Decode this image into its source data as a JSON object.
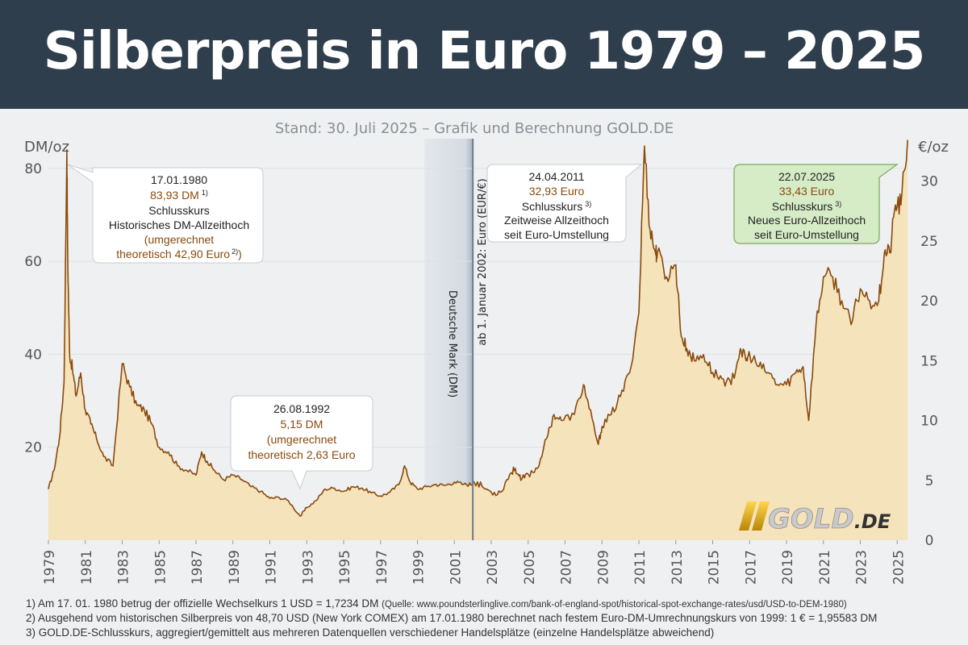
{
  "header": {
    "title": "Silberpreis in Euro 1979 – 2025"
  },
  "chart_data": {
    "type": "area",
    "subtitle": "Stand: 30. Juli 2025 – Grafik und Berechnung GOLD.DE",
    "left_axis": {
      "unit": "DM/oz",
      "ticks": [
        20,
        40,
        60,
        80
      ],
      "range": [
        0,
        85
      ]
    },
    "right_axis": {
      "unit": "€/oz",
      "ticks": [
        0,
        5,
        10,
        15,
        20,
        25,
        30
      ],
      "range": [
        0,
        33
      ]
    },
    "x_axis": {
      "range": [
        1979,
        2025.6
      ],
      "ticks": [
        "1979",
        "1981",
        "1983",
        "1985",
        "1987",
        "1989",
        "1991",
        "1993",
        "1995",
        "1997",
        "1999",
        "2001",
        "2003",
        "2005",
        "2007",
        "2009",
        "2011",
        "2013",
        "2015",
        "2017",
        "2019",
        "2021",
        "2023",
        "2025"
      ]
    },
    "currency_switch": {
      "year": 2002.0,
      "label_dm": "Deutsche Mark (DM)",
      "label_eur": "ab 1. Januar 2002: Euro (EUR/€)"
    },
    "series": [
      {
        "currency": "DM",
        "x": [
          1979.0,
          1979.3,
          1979.6,
          1979.85,
          1980.0,
          1980.05,
          1980.15,
          1980.3,
          1980.5,
          1980.75,
          1981.0,
          1981.3,
          1981.6,
          1982.0,
          1982.5,
          1983.0,
          1983.4,
          1983.8,
          1984.2,
          1984.6,
          1985.0,
          1985.5,
          1986.0,
          1986.5,
          1987.0,
          1987.3,
          1987.6,
          1988.0,
          1988.5,
          1989.0,
          1989.5,
          1990.0,
          1990.5,
          1991.0,
          1991.5,
          1992.0,
          1992.65,
          1993.0,
          1993.5,
          1994.0,
          1994.5,
          1995.0,
          1995.5,
          1996.0,
          1996.5,
          1997.0,
          1997.5,
          1998.0,
          1998.3,
          1998.6,
          1999.0,
          1999.5,
          2000.0,
          2000.5,
          2001.0,
          2001.5,
          2001.99
        ],
        "y": [
          11,
          15,
          22,
          34,
          84,
          60,
          40,
          37,
          31,
          36,
          28,
          25,
          22,
          18,
          16,
          38,
          33,
          29,
          28,
          25,
          20,
          19,
          16,
          15,
          14,
          19,
          17,
          15,
          13,
          14,
          13,
          11.5,
          10.5,
          9,
          9.2,
          8.5,
          5.15,
          7,
          8.5,
          11,
          11.2,
          10.5,
          11.5,
          11.2,
          10.2,
          9.5,
          10.3,
          12,
          16,
          12.5,
          11,
          11.5,
          12,
          11.8,
          12.5,
          12,
          12
        ]
      },
      {
        "currency": "EUR",
        "x": [
          2002.0,
          2002.5,
          2003.0,
          2003.5,
          2004.0,
          2004.3,
          2004.6,
          2005.0,
          2005.5,
          2006.0,
          2006.4,
          2006.8,
          2007.5,
          2008.0,
          2008.3,
          2008.8,
          2009.0,
          2009.5,
          2010.0,
          2010.5,
          2011.0,
          2011.3,
          2011.6,
          2011.9,
          2012.0,
          2012.5,
          2013.0,
          2013.3,
          2013.6,
          2014.0,
          2014.5,
          2015.0,
          2015.5,
          2016.0,
          2016.5,
          2016.8,
          2017.0,
          2017.5,
          2018.0,
          2018.5,
          2019.0,
          2019.5,
          2019.9,
          2020.2,
          2020.6,
          2021.0,
          2021.5,
          2022.0,
          2022.5,
          2023.0,
          2023.5,
          2024.0,
          2024.3,
          2024.6,
          2024.9,
          2025.2,
          2025.56
        ],
        "y": [
          5,
          4.5,
          4,
          4,
          5.5,
          6,
          5,
          5.5,
          6,
          8.5,
          10.5,
          10,
          10.5,
          13,
          11,
          8,
          9.5,
          10.5,
          12,
          14,
          19,
          32.93,
          26,
          24,
          24,
          22,
          23,
          17,
          16,
          15,
          15.5,
          14,
          13.5,
          13,
          16,
          15,
          15.5,
          14.5,
          14,
          13,
          13,
          14,
          14.5,
          10,
          18,
          22,
          22,
          20,
          18,
          21,
          20,
          20,
          24,
          24,
          28,
          28,
          33.43
        ]
      }
    ],
    "annotations": [
      {
        "date": "17.01.1980",
        "value": "83,93 DM",
        "sup": "1)",
        "label": "Schlusskurs",
        "text": "Historisches DM-Allzeithoch",
        "extra": "(umgerechnet",
        "extra2": "theoretisch 42,90 Euro",
        "extra2_sup": "2)",
        "extra2_end": ")"
      },
      {
        "date": "26.08.1992",
        "value": "5,15 DM",
        "label": "(umgerechnet",
        "text": "theoretisch 2,63 Euro"
      },
      {
        "date": "24.04.2011",
        "value": "32,93 Euro",
        "label": "Schlusskurs",
        "label_sup": "3)",
        "text": "Zeitweise Allzeithoch",
        "extra": "seit Euro-Umstellung"
      },
      {
        "date": "22.07.2025",
        "value": "33,43 Euro",
        "label": "Schlusskurs",
        "label_sup": "3)",
        "text": "Neues Euro-Allzeithoch",
        "extra": "seit Euro-Umstellung"
      }
    ],
    "logo": {
      "text": "GOLD",
      "suffix": ".DE"
    },
    "colors": {
      "line": "#8a4a0c",
      "fill": "#f5e3bc",
      "header": "#2f3e4c",
      "value_text": "#8a4a0c",
      "highlight_box": "#d6ecc7",
      "highlight_border": "#7aa85c",
      "switch_band": "#dfe4ea"
    }
  },
  "footnotes": [
    "1) Am 17. 01. 1980 betrug der offizielle Wechselkurs 1 USD = 1,7234 DM",
    "(Quelle: www.poundsterlinglive.com/bank-of-england-spot/historical-spot-exchange-rates/usd/USD-to-DEM-1980)",
    "2) Ausgehend vom historischen Silberpreis von 48,70 USD (New York COMEX) am 17.01.1980 berechnet nach festem Euro-DM-Umrechnungskurs von 1999: 1 € = 1,95583 DM",
    "3) GOLD.DE-Schlusskurs, aggregiert/gemittelt aus mehreren Datenquellen verschiedener Handelsplätze (einzelne Handelsplätze abweichend)"
  ]
}
